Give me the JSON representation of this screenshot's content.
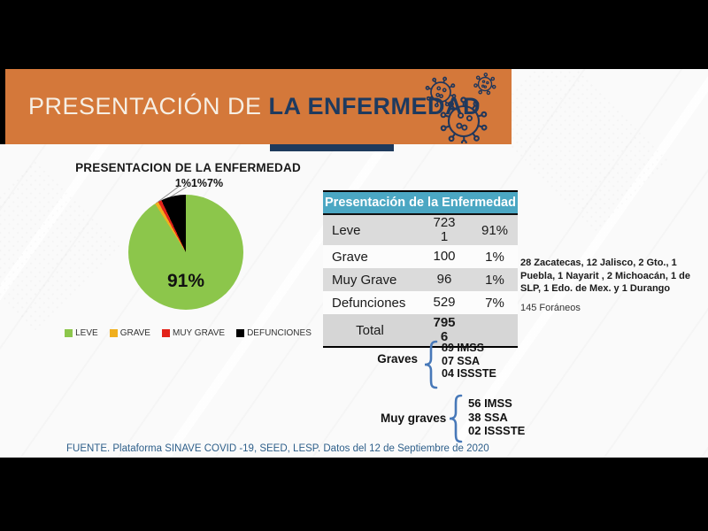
{
  "banner": {
    "title_regular": "PRESENTACIÓN DE ",
    "title_bold": "LA ENFERMEDAD",
    "bg_color": "#D4783A",
    "title_regular_color": "#F6EFE4",
    "title_bold_color": "#1E3A5F",
    "strip_color": "#1E3A5C"
  },
  "chart_data": {
    "type": "pie",
    "title": "PRESENTACION DE LA ENFERMEDAD",
    "small_slices_label": "1%1%7%",
    "center_label": "91%",
    "legend_position": "bottom",
    "slices": [
      {
        "label": "LEVE",
        "value": 7231,
        "pct": 91,
        "color": "#8CC64B"
      },
      {
        "label": "GRAVE",
        "value": 100,
        "pct": 1,
        "color": "#F0AF1E"
      },
      {
        "label": "MUY GRAVE",
        "value": 96,
        "pct": 1,
        "color": "#E2231A"
      },
      {
        "label": "DEFUNCIONES",
        "value": 529,
        "pct": 7,
        "color": "#000000"
      }
    ]
  },
  "table": {
    "title": "Presentación de la Enfermedad",
    "header_bg": "#4BA7C3",
    "rows": [
      {
        "label": "Leve",
        "value": "7231",
        "pct": "91%"
      },
      {
        "label": "Grave",
        "value": "100",
        "pct": "1%"
      },
      {
        "label": "Muy Grave",
        "value": "96",
        "pct": "1%"
      },
      {
        "label": "Defunciones",
        "value": "529",
        "pct": "7%"
      }
    ],
    "total_label": "Total",
    "total_value": "7956"
  },
  "notes": {
    "states": "28 Zacatecas, 12 Jalisco, 2 Gto., 1 Puebla, 1 Nayarit , 2 Michoacán, 1 de SLP, 1 Edo. de Mex. y 1 Durango",
    "foreign": "145 Foráneos"
  },
  "graves": {
    "label": "Graves",
    "items": [
      "89 IMSS",
      "07 SSA",
      "04 ISSSTE"
    ],
    "brace_color": "#4778B8"
  },
  "muy_graves": {
    "label": "Muy graves",
    "items": [
      "56 IMSS",
      "38 SSA",
      "02 ISSSTE"
    ],
    "brace_color": "#4778B8"
  },
  "footer": {
    "source": "FUENTE. Plataforma SINAVE COVID -19, SEED, LESP. Datos del 12 de Septiembre de 2020"
  }
}
